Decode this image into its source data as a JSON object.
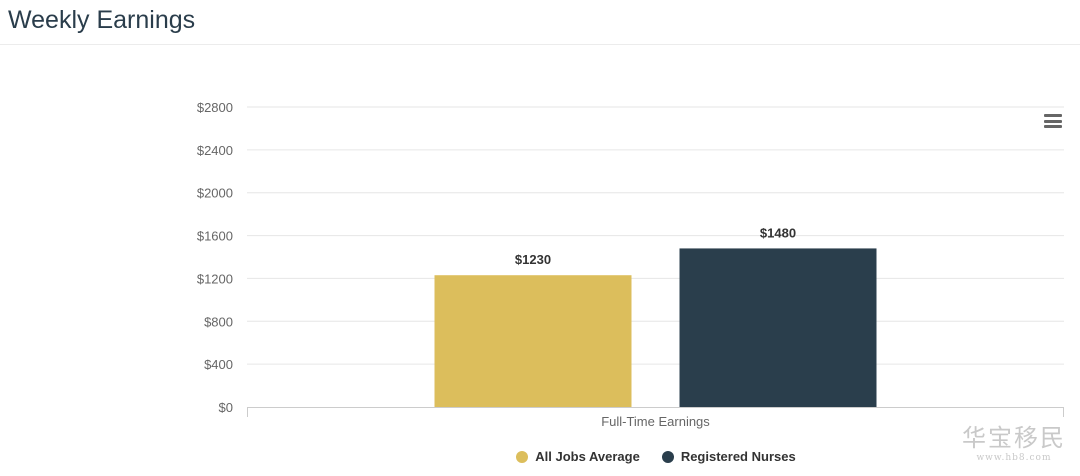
{
  "page": {
    "title": "Weekly Earnings"
  },
  "chart_data": {
    "type": "bar",
    "title": "",
    "categories": [
      "Full-Time Earnings"
    ],
    "series": [
      {
        "name": "All Jobs Average",
        "values": [
          1230
        ],
        "color": "#dcbe5c"
      },
      {
        "name": "Registered Nurses",
        "values": [
          1480
        ],
        "color": "#2a3e4c"
      }
    ],
    "ylim": [
      0,
      2800
    ],
    "y_ticks": [
      "$0",
      "$400",
      "$800",
      "$1200",
      "$1600",
      "$2000",
      "$2400",
      "$2800"
    ],
    "data_labels": [
      "$1230",
      "$1480"
    ],
    "xlabel": "",
    "ylabel": "",
    "grid": true,
    "legend_position": "bottom-center"
  },
  "menu": {
    "icon": "hamburger-menu-icon"
  },
  "watermark": {
    "main": "华宝移民",
    "url": "www.hb8.com"
  }
}
